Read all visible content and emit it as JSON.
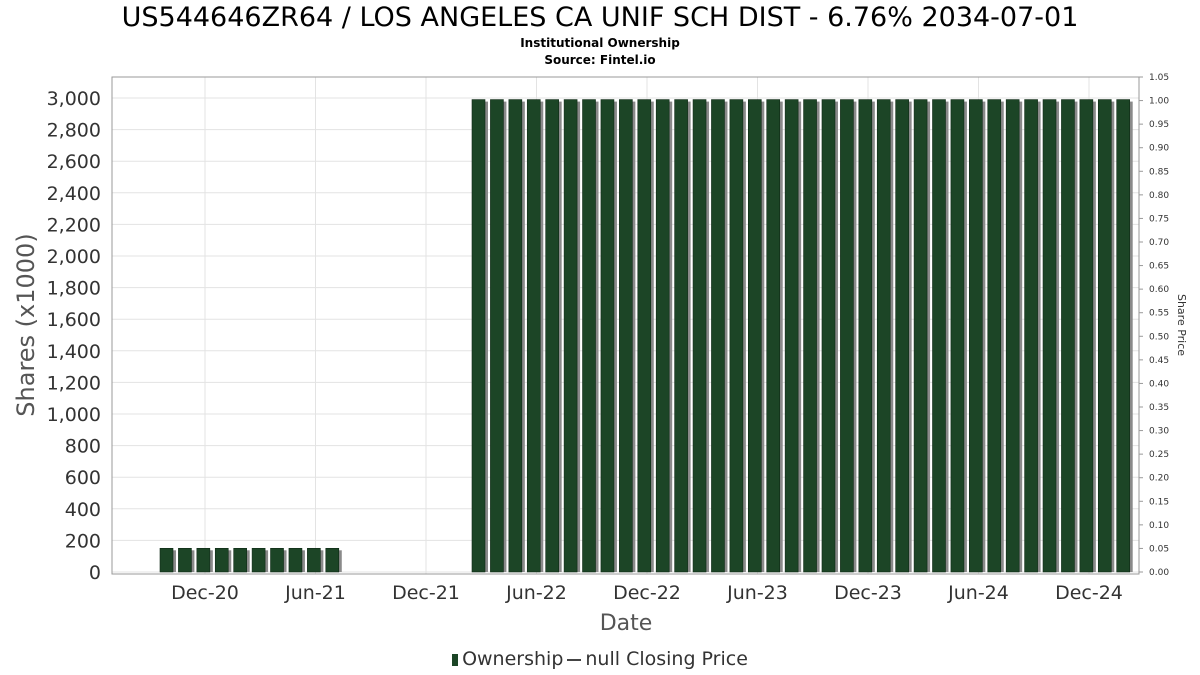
{
  "header": {
    "title": "US544646ZR64 / LOS ANGELES CA UNIF SCH DIST - 6.76% 2034-07-01",
    "subtitle": "Institutional Ownership",
    "source": "Source: Fintel.io"
  },
  "legend": {
    "ownership_label": "Ownership",
    "price_label": "null Closing Price"
  },
  "chart_data": {
    "type": "bar",
    "xlabel": "Date",
    "ylabel": "Shares (x1000)",
    "y2label": "Share Price",
    "ylim": [
      0,
      3000
    ],
    "y2lim": [
      0,
      1.05
    ],
    "ytick_labels": [
      "0",
      "200",
      "400",
      "600",
      "800",
      "1,000",
      "1,200",
      "1,400",
      "1,600",
      "1,800",
      "2,000",
      "2,200",
      "2,400",
      "2,600",
      "2,800",
      "3,000"
    ],
    "y2tick_labels": [
      "0.00",
      "0.05",
      "0.10",
      "0.15",
      "0.20",
      "0.25",
      "0.30",
      "0.35",
      "0.40",
      "0.45",
      "0.50",
      "0.55",
      "0.60",
      "0.65",
      "0.70",
      "0.75",
      "0.80",
      "0.85",
      "0.90",
      "0.95",
      "1.00",
      "1.05"
    ],
    "xtick_labels": [
      "Dec-20",
      "Jun-21",
      "Dec-21",
      "Jun-22",
      "Dec-22",
      "Jun-23",
      "Dec-23",
      "Jun-24",
      "Dec-24"
    ],
    "grid": true,
    "legend_position": "bottom",
    "colors": {
      "bar": "#1c4526",
      "bar_shadow": "#8a8a8a",
      "grid": "#e3e3e3"
    },
    "series": [
      {
        "name": "Ownership",
        "values": [
          150,
          150,
          150,
          150,
          150,
          150,
          150,
          150,
          150,
          150,
          2990,
          2990,
          2990,
          2990,
          2990,
          2990,
          2990,
          2990,
          2990,
          2990,
          2990,
          2990,
          2990,
          2990,
          2990,
          2990,
          2990,
          2990,
          2990,
          2990,
          2990,
          2990,
          2990,
          2990,
          2990,
          2990,
          2990,
          2990,
          2990,
          2990,
          2990,
          2990,
          2990,
          2990,
          2990,
          2990
        ]
      }
    ]
  }
}
